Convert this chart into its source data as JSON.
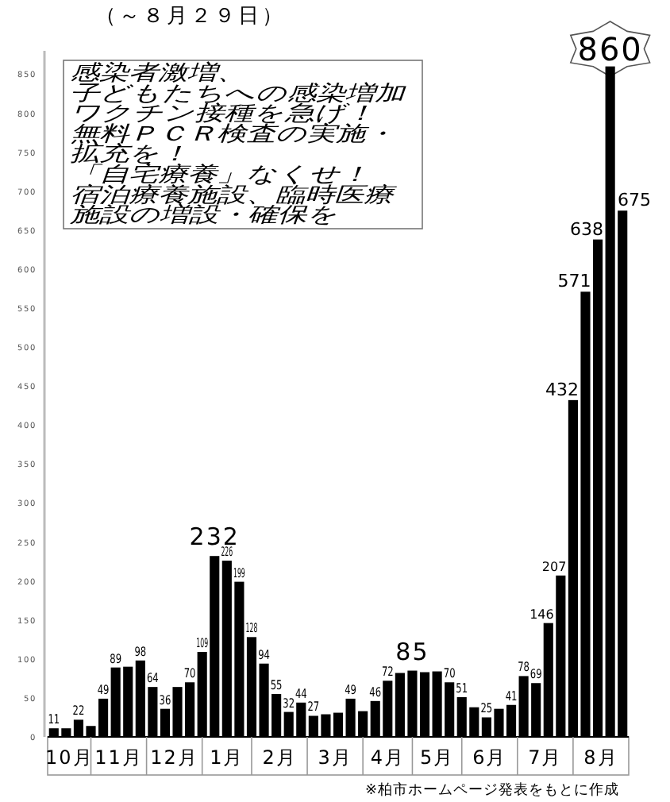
{
  "chart_data": {
    "type": "bar",
    "title": "（～８月２９日）",
    "categories": [
      null,
      "10月",
      null,
      null,
      null,
      "11月",
      null,
      null,
      null,
      null,
      "12月",
      null,
      null,
      null,
      "1月",
      null,
      null,
      null,
      "2月",
      null,
      null,
      null,
      null,
      "3月",
      null,
      null,
      null,
      "4月",
      null,
      null,
      null,
      "5月",
      null,
      null,
      null,
      "6月",
      null,
      null,
      null,
      null,
      "7月",
      null,
      null,
      null,
      "8月",
      null,
      null
    ],
    "values": [
      11,
      11,
      22,
      14,
      49,
      89,
      90,
      98,
      64,
      36,
      64,
      70,
      109,
      232,
      226,
      199,
      128,
      94,
      55,
      32,
      44,
      27,
      29,
      31,
      49,
      33,
      46,
      72,
      82,
      85,
      83,
      84,
      70,
      51,
      38,
      25,
      36,
      41,
      78,
      69,
      146,
      207,
      432,
      571,
      638,
      860,
      675
    ],
    "value_labels": [
      "11",
      null,
      "22",
      null,
      "49",
      "89",
      null,
      "98",
      "64",
      "36",
      null,
      "70",
      "109",
      "232",
      "226",
      "199",
      "128",
      "94",
      "55",
      "32",
      "44",
      "27",
      null,
      null,
      "49",
      null,
      "46",
      "72",
      null,
      "85",
      null,
      null,
      "70",
      "51",
      null,
      "25",
      null,
      "41",
      "78",
      "69",
      "146",
      "207",
      "432",
      "571",
      "638",
      "860",
      "675"
    ],
    "color": "#000000",
    "ylim": [
      0,
      880
    ],
    "yticks": [
      0,
      50,
      100,
      150,
      200,
      250,
      300,
      350,
      400,
      450,
      500,
      550,
      600,
      650,
      700,
      750,
      800,
      850
    ],
    "grid": false,
    "annotations": [
      "※柏市ホームページ発表をもとに作成",
      "感染者激増、",
      "子どもたちへの感染増加",
      "ワクチン接種を急げ！",
      "無料ＰＣＲ検査の実施・",
      "拡充を！",
      "「自宅療養」なくせ！",
      "宿泊療養施設、臨時医療",
      "施設の増設・確保を"
    ]
  }
}
